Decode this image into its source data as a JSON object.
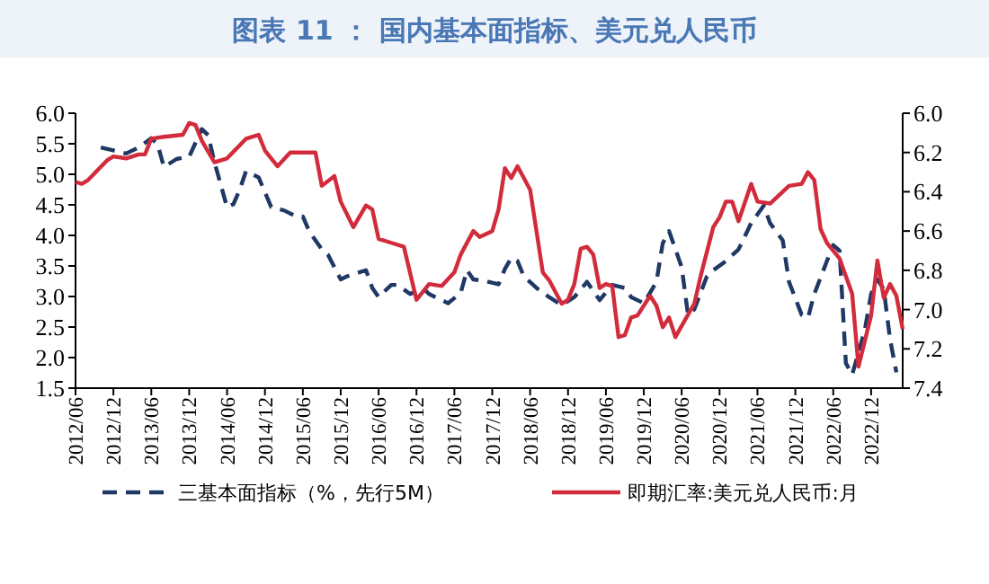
{
  "chart_data": {
    "type": "line",
    "title": "图表 11 ： 国内基本面指标、美元兑人民币",
    "xlim": [
      "2012-06",
      "2023-05"
    ],
    "xticks": [
      {
        "value": "2012-06",
        "label": "2012/06"
      },
      {
        "value": "2012-12",
        "label": "2012/12"
      },
      {
        "value": "2013-06",
        "label": "2013/06"
      },
      {
        "value": "2013-12",
        "label": "2013/12"
      },
      {
        "value": "2014-06",
        "label": "2014/06"
      },
      {
        "value": "2014-12",
        "label": "2014/12"
      },
      {
        "value": "2015-06",
        "label": "2015/06"
      },
      {
        "value": "2015-12",
        "label": "2015/12"
      },
      {
        "value": "2016-06",
        "label": "2016/06"
      },
      {
        "value": "2016-12",
        "label": "2016/12"
      },
      {
        "value": "2017-06",
        "label": "2017/06"
      },
      {
        "value": "2017-12",
        "label": "2017/12"
      },
      {
        "value": "2018-06",
        "label": "2018/06"
      },
      {
        "value": "2018-12",
        "label": "2018/12"
      },
      {
        "value": "2019-06",
        "label": "2019/06"
      },
      {
        "value": "2019-12",
        "label": "2019/12"
      },
      {
        "value": "2020-06",
        "label": "2020/06"
      },
      {
        "value": "2020-12",
        "label": "2020/12"
      },
      {
        "value": "2021-06",
        "label": "2021/06"
      },
      {
        "value": "2021-12",
        "label": "2021/12"
      },
      {
        "value": "2022-06",
        "label": "2022/06"
      },
      {
        "value": "2022-12",
        "label": "2022/12"
      }
    ],
    "ylim": [
      1.5,
      6.0
    ],
    "yticks": [
      {
        "value": 1.5,
        "label": "1.5"
      },
      {
        "value": 2.0,
        "label": "2.0"
      },
      {
        "value": 2.5,
        "label": "2.5"
      },
      {
        "value": 3.0,
        "label": "3.0"
      },
      {
        "value": 3.5,
        "label": "3.5"
      },
      {
        "value": 4.0,
        "label": "4.0"
      },
      {
        "value": 4.5,
        "label": "4.5"
      },
      {
        "value": 5.0,
        "label": "5.0"
      },
      {
        "value": 5.5,
        "label": "5.5"
      },
      {
        "value": 6.0,
        "label": "6.0"
      }
    ],
    "y2lim": [
      7.4,
      6.0
    ],
    "y2ticks": [
      {
        "value": 6.0,
        "label": "6.0"
      },
      {
        "value": 6.2,
        "label": "6.2"
      },
      {
        "value": 6.4,
        "label": "6.4"
      },
      {
        "value": 6.6,
        "label": "6.6"
      },
      {
        "value": 6.8,
        "label": "6.8"
      },
      {
        "value": 7.0,
        "label": "7.0"
      },
      {
        "value": 7.2,
        "label": "7.2"
      },
      {
        "value": 7.4,
        "label": "7.4"
      }
    ],
    "grid": false,
    "legend": "bottom",
    "series": [
      {
        "name": "三基本面指标（%，先行5M）",
        "color": "#1f3864",
        "line_style": "dashed",
        "x": [
          "2012-10",
          "2012-12",
          "2013-02",
          "2013-04",
          "2013-06",
          "2013-07",
          "2013-08",
          "2013-10",
          "2013-12",
          "2014-02",
          "2014-03",
          "2014-04",
          "2014-06",
          "2014-07",
          "2014-08",
          "2014-09",
          "2014-11",
          "2015-01",
          "2015-03",
          "2015-05",
          "2015-06",
          "2015-07",
          "2015-09",
          "2015-10",
          "2015-12",
          "2016-01",
          "2016-04",
          "2016-05",
          "2016-06",
          "2016-08",
          "2016-09",
          "2016-11",
          "2017-01",
          "2017-02",
          "2017-05",
          "2017-07",
          "2017-08",
          "2017-09",
          "2017-11",
          "2018-01",
          "2018-02",
          "2018-03",
          "2018-04",
          "2018-05",
          "2018-07",
          "2018-09",
          "2018-11",
          "2019-01",
          "2019-03",
          "2019-05",
          "2019-07",
          "2019-09",
          "2019-10",
          "2019-12",
          "2020-02",
          "2020-03",
          "2020-04",
          "2020-06",
          "2020-07",
          "2020-08",
          "2020-10",
          "2020-11",
          "2021-01",
          "2021-03",
          "2021-05",
          "2021-07",
          "2021-08",
          "2021-10",
          "2021-11",
          "2022-01",
          "2022-02",
          "2022-03",
          "2022-05",
          "2022-06",
          "2022-07",
          "2022-08",
          "2022-09",
          "2022-11",
          "2022-12",
          "2023-01",
          "2023-02",
          "2023-03",
          "2023-04"
        ],
        "values": [
          5.44,
          5.39,
          5.34,
          5.44,
          5.59,
          5.49,
          5.12,
          5.25,
          5.29,
          5.74,
          5.64,
          5.2,
          4.46,
          4.51,
          4.75,
          5.05,
          4.95,
          4.46,
          4.41,
          4.31,
          4.31,
          4.07,
          3.77,
          3.68,
          3.28,
          3.33,
          3.43,
          3.14,
          2.99,
          3.19,
          3.19,
          3.04,
          3.14,
          3.04,
          2.89,
          3.06,
          3.43,
          3.28,
          3.25,
          3.2,
          3.45,
          3.63,
          3.58,
          3.33,
          3.14,
          2.99,
          2.86,
          2.99,
          3.24,
          2.94,
          3.19,
          3.14,
          2.99,
          2.89,
          3.24,
          3.87,
          4.07,
          3.48,
          2.7,
          2.79,
          3.33,
          3.43,
          3.58,
          3.77,
          4.2,
          4.49,
          4.2,
          3.92,
          3.24,
          2.7,
          2.65,
          3.04,
          3.58,
          3.84,
          3.75,
          1.91,
          1.72,
          2.45,
          3.04,
          3.28,
          3.12,
          2.3,
          1.76
        ]
      },
      {
        "name": "即期汇率:美元兑人民币:月",
        "color": "#d22b3c",
        "line_style": "solid",
        "axis": "y2",
        "x": [
          "2012-06",
          "2012-07",
          "2012-08",
          "2012-11",
          "2012-12",
          "2013-02",
          "2013-04",
          "2013-05",
          "2013-06",
          "2013-08",
          "2013-11",
          "2013-12",
          "2014-01",
          "2014-02",
          "2014-04",
          "2014-06",
          "2014-09",
          "2014-11",
          "2014-12",
          "2015-02",
          "2015-04",
          "2015-06",
          "2015-08",
          "2015-09",
          "2015-11",
          "2015-12",
          "2016-02",
          "2016-04",
          "2016-05",
          "2016-06",
          "2016-08",
          "2016-10",
          "2016-12",
          "2017-02",
          "2017-04",
          "2017-06",
          "2017-07",
          "2017-09",
          "2017-10",
          "2017-12",
          "2018-01",
          "2018-02",
          "2018-03",
          "2018-04",
          "2018-06",
          "2018-08",
          "2018-09",
          "2018-11",
          "2018-12",
          "2019-01",
          "2019-02",
          "2019-03",
          "2019-04",
          "2019-05",
          "2019-06",
          "2019-07",
          "2019-08",
          "2019-09",
          "2019-10",
          "2019-11",
          "2020-01",
          "2020-02",
          "2020-03",
          "2020-04",
          "2020-05",
          "2020-08",
          "2020-09",
          "2020-11",
          "2020-12",
          "2021-01",
          "2021-02",
          "2021-03",
          "2021-05",
          "2021-06",
          "2021-08",
          "2021-11",
          "2022-01",
          "2022-02",
          "2022-03",
          "2022-04",
          "2022-05",
          "2022-07",
          "2022-09",
          "2022-10",
          "2022-12",
          "2023-01",
          "2023-02",
          "2023-03",
          "2023-04",
          "2023-05"
        ],
        "values": [
          6.35,
          6.36,
          6.34,
          6.24,
          6.22,
          6.23,
          6.21,
          6.21,
          6.13,
          6.12,
          6.11,
          6.05,
          6.06,
          6.14,
          6.25,
          6.23,
          6.13,
          6.11,
          6.19,
          6.27,
          6.2,
          6.2,
          6.2,
          6.37,
          6.32,
          6.45,
          6.58,
          6.47,
          6.49,
          6.64,
          6.66,
          6.68,
          6.95,
          6.87,
          6.88,
          6.81,
          6.72,
          6.6,
          6.63,
          6.6,
          6.49,
          6.28,
          6.33,
          6.27,
          6.39,
          6.81,
          6.85,
          6.97,
          6.95,
          6.87,
          6.69,
          6.68,
          6.72,
          6.89,
          6.87,
          6.88,
          7.14,
          7.13,
          7.04,
          7.03,
          6.93,
          6.98,
          7.09,
          7.04,
          7.14,
          6.97,
          6.83,
          6.58,
          6.53,
          6.45,
          6.45,
          6.55,
          6.36,
          6.45,
          6.46,
          6.37,
          6.36,
          6.3,
          6.34,
          6.59,
          6.66,
          6.74,
          6.92,
          7.29,
          7.03,
          6.75,
          6.94,
          6.87,
          6.93,
          7.1
        ]
      }
    ]
  }
}
